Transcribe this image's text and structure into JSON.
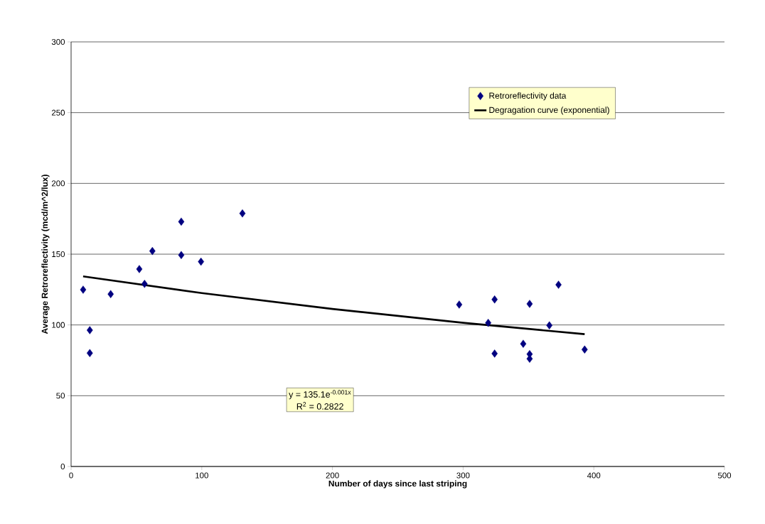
{
  "chart_data": {
    "type": "scatter",
    "xlabel": "Number of days since last striping",
    "ylabel": "Average Retroreflectivity (mcd/m^2/lux)",
    "xlim": [
      0,
      500
    ],
    "xticks": [
      0,
      100,
      200,
      300,
      400,
      500
    ],
    "ylim": [
      0,
      300
    ],
    "yticks": [
      0,
      50,
      100,
      150,
      200,
      250,
      300
    ],
    "grid": "y",
    "legend": "top right",
    "annotations": [
      "y = 135.1e$^{-0.001x}$",
      "R$^{2}$ = 0.2822"
    ],
    "series": [
      {
        "name": "Retroreflectivity data",
        "marker": "diamond",
        "color": "#000080",
        "x": [
          9.2,
          14.3,
          14.3,
          30.3,
          52.2,
          56.2,
          62.2,
          84.3,
          84.3,
          99.4,
          131.1,
          297,
          319.2,
          324.1,
          324.1,
          346,
          350.9,
          350.9,
          350.9,
          366,
          373,
          393
        ],
        "values": [
          124.9,
          96.3,
          80.1,
          121.8,
          139.5,
          129,
          152.2,
          173,
          149.4,
          144.7,
          178.8,
          114.4,
          101.5,
          118,
          79.8,
          86.7,
          114.9,
          79.4,
          76.1,
          99.7,
          128.4,
          82.6
        ]
      },
      {
        "name": "Degragation curve (exponential)",
        "type": "line",
        "marker": "none",
        "color": "#000000",
        "x": [
          9.2,
          100,
          200,
          300,
          393
        ],
        "values": [
          134.3,
          122.5,
          111.3,
          101.5,
          93.5
        ]
      }
    ]
  }
}
